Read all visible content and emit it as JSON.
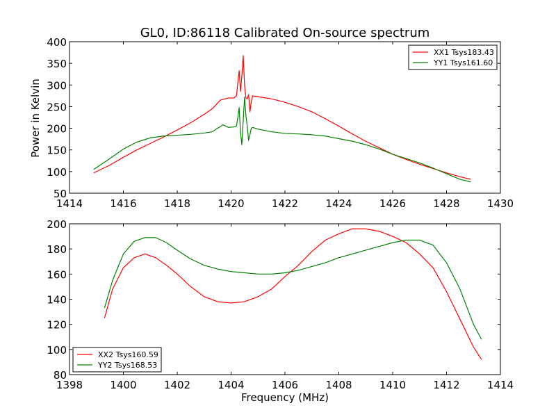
{
  "chart_data": [
    {
      "type": "line",
      "title": "GL0, ID:86118 Calibrated On-source spectrum",
      "xlabel": "",
      "ylabel": "Power in Kelvin",
      "xlim": [
        1414,
        1430
      ],
      "ylim": [
        50,
        400
      ],
      "xticks": [
        1414,
        1416,
        1418,
        1420,
        1422,
        1424,
        1426,
        1428,
        1430
      ],
      "yticks": [
        50,
        100,
        150,
        200,
        250,
        300,
        350,
        400
      ],
      "grid": false,
      "legend_position": "top-right",
      "series": [
        {
          "name": "XX1 Tsys183.43",
          "color": "#ff0000",
          "x": [
            1414.9,
            1415.5,
            1416.0,
            1416.5,
            1417.0,
            1417.5,
            1418.0,
            1418.5,
            1419.0,
            1419.3,
            1419.6,
            1419.9,
            1420.1,
            1420.2,
            1420.25,
            1420.3,
            1420.35,
            1420.4,
            1420.45,
            1420.5,
            1420.55,
            1420.6,
            1420.65,
            1420.7,
            1420.75,
            1420.8,
            1421.0,
            1421.5,
            1422.0,
            1422.5,
            1423.0,
            1423.5,
            1424.0,
            1424.5,
            1425.0,
            1425.5,
            1426.0,
            1426.5,
            1427.0,
            1427.5,
            1428.0,
            1428.5,
            1428.9
          ],
          "y": [
            97,
            115,
            133,
            150,
            165,
            180,
            196,
            213,
            232,
            245,
            265,
            270,
            270,
            275,
            305,
            333,
            285,
            320,
            368,
            300,
            270,
            268,
            278,
            238,
            262,
            275,
            273,
            268,
            260,
            250,
            238,
            222,
            205,
            187,
            170,
            155,
            140,
            128,
            117,
            107,
            97,
            88,
            82
          ]
        },
        {
          "name": "YY1 Tsys161.60",
          "color": "#008000",
          "x": [
            1414.9,
            1415.5,
            1416.0,
            1416.5,
            1417.0,
            1417.5,
            1418.0,
            1418.5,
            1419.0,
            1419.3,
            1419.5,
            1419.7,
            1419.9,
            1420.1,
            1420.2,
            1420.25,
            1420.3,
            1420.35,
            1420.4,
            1420.45,
            1420.5,
            1420.55,
            1420.6,
            1420.65,
            1420.7,
            1420.75,
            1420.8,
            1421.0,
            1421.5,
            1422.0,
            1422.5,
            1423.0,
            1423.5,
            1424.0,
            1424.5,
            1425.0,
            1425.5,
            1426.0,
            1426.5,
            1427.0,
            1427.5,
            1428.0,
            1428.5,
            1428.9
          ],
          "y": [
            105,
            130,
            152,
            168,
            178,
            182,
            184,
            186,
            189,
            192,
            200,
            208,
            202,
            203,
            205,
            225,
            248,
            190,
            162,
            218,
            272,
            230,
            205,
            172,
            185,
            200,
            202,
            198,
            192,
            188,
            187,
            185,
            182,
            176,
            170,
            162,
            152,
            140,
            130,
            120,
            108,
            95,
            82,
            76
          ]
        }
      ]
    },
    {
      "type": "line",
      "title": "",
      "xlabel": "Frequency (MHz)",
      "ylabel": "",
      "xlim": [
        1398,
        1414
      ],
      "ylim": [
        80,
        200
      ],
      "xticks": [
        1398,
        1400,
        1402,
        1404,
        1406,
        1408,
        1410,
        1412,
        1414
      ],
      "yticks": [
        80,
        100,
        120,
        140,
        160,
        180,
        200
      ],
      "grid": false,
      "legend_position": "bottom-left",
      "series": [
        {
          "name": "XX2 Tsys160.59",
          "color": "#ff0000",
          "x": [
            1399.3,
            1399.6,
            1400.0,
            1400.4,
            1400.8,
            1401.2,
            1401.6,
            1402.0,
            1402.5,
            1403.0,
            1403.5,
            1404.0,
            1404.5,
            1405.0,
            1405.5,
            1406.0,
            1406.5,
            1407.0,
            1407.5,
            1408.0,
            1408.5,
            1409.0,
            1409.5,
            1410.0,
            1410.5,
            1411.0,
            1411.5,
            1412.0,
            1412.5,
            1413.0,
            1413.3
          ],
          "y": [
            125,
            148,
            165,
            173,
            176,
            173,
            167,
            160,
            150,
            142,
            138,
            137,
            138,
            142,
            148,
            158,
            167,
            178,
            187,
            192,
            196,
            196,
            194,
            190,
            185,
            176,
            165,
            146,
            124,
            102,
            92
          ]
        },
        {
          "name": "YY2 Tsys168.53",
          "color": "#008000",
          "x": [
            1399.3,
            1399.6,
            1400.0,
            1400.4,
            1400.8,
            1401.2,
            1401.6,
            1402.0,
            1402.5,
            1403.0,
            1403.5,
            1404.0,
            1404.5,
            1405.0,
            1405.5,
            1406.0,
            1406.5,
            1407.0,
            1407.5,
            1408.0,
            1408.5,
            1409.0,
            1409.5,
            1410.0,
            1410.5,
            1411.0,
            1411.5,
            1412.0,
            1412.5,
            1413.0,
            1413.3
          ],
          "y": [
            133,
            155,
            176,
            186,
            189,
            189,
            185,
            179,
            172,
            167,
            164,
            162,
            161,
            160,
            160,
            161,
            163,
            166,
            169,
            173,
            176,
            179,
            182,
            185,
            187,
            187,
            183,
            169,
            148,
            120,
            108
          ]
        }
      ]
    }
  ]
}
